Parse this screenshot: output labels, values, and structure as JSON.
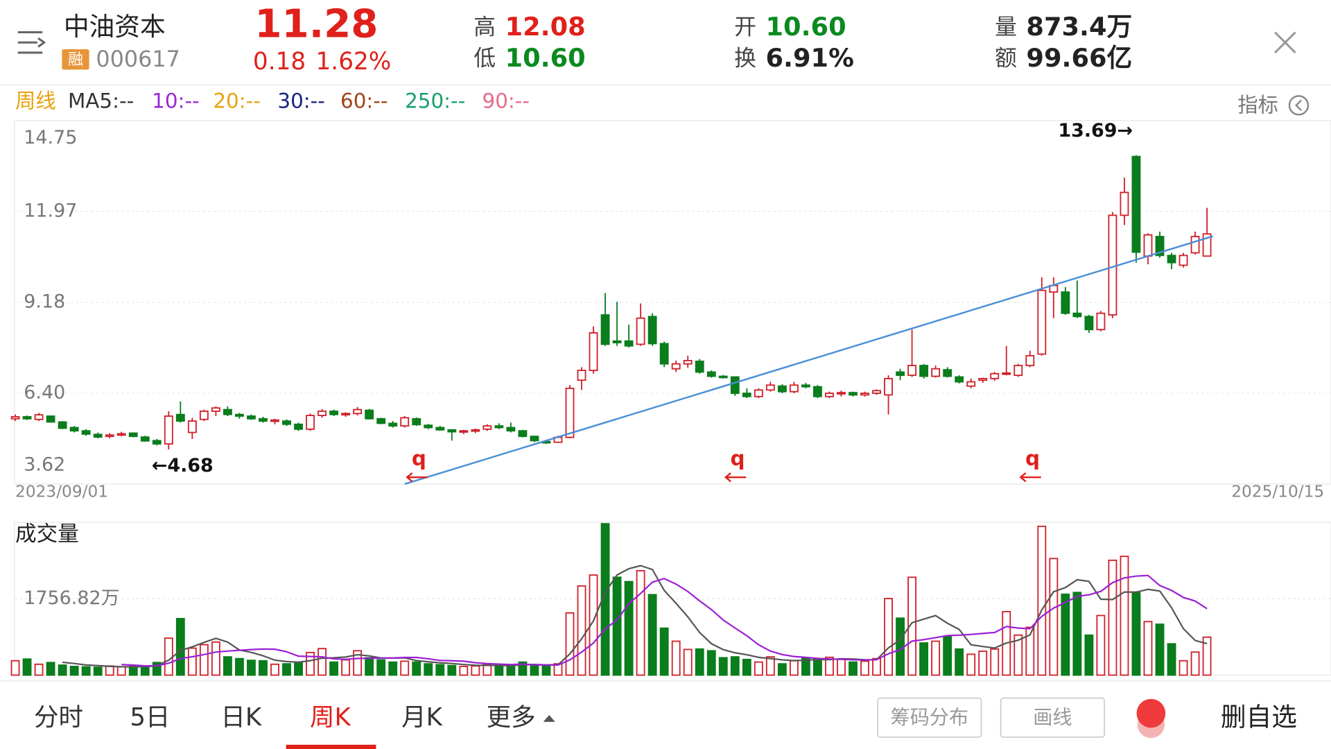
{
  "header": {
    "name": "中油资本",
    "tag": "融",
    "code": "000617",
    "price": "11.28",
    "change": "0.18",
    "change_pct": "1.62%",
    "stats": [
      {
        "label": "高",
        "value": "12.08",
        "color": "#e0201b"
      },
      {
        "label": "低",
        "value": "10.60",
        "color": "#0b8a1f"
      },
      {
        "label": "开",
        "value": "10.60",
        "color": "#0b8a1f"
      },
      {
        "label": "换",
        "value": "6.91%",
        "color": "#222222"
      },
      {
        "label": "量",
        "value": "873.4万",
        "color": "#222222"
      },
      {
        "label": "额",
        "value": "99.66亿",
        "color": "#222222"
      }
    ]
  },
  "indicator_bar": {
    "period": "周线",
    "button": "指标",
    "items": [
      {
        "label": "MA5:--",
        "color": "#333333"
      },
      {
        "label": "10:--",
        "color": "#9b27d6"
      },
      {
        "label": "20:--",
        "color": "#e8a30c"
      },
      {
        "label": "30:--",
        "color": "#1a237e"
      },
      {
        "label": "60:--",
        "color": "#a0441a"
      },
      {
        "label": "250:--",
        "color": "#17a06a"
      },
      {
        "label": "90:--",
        "color": "#e86a8a"
      }
    ]
  },
  "chart_data": {
    "type": "candlestick",
    "start_label": "2023/09/01",
    "end_label": "2025/10/15",
    "ylim": [
      3.62,
      14.75
    ],
    "yticks": [
      3.62,
      {
        "value": 6.4,
        "label": "6.40"
      },
      9.18,
      11.97,
      14.75
    ],
    "grid": true,
    "up_color": "#d0212a",
    "down_color": "#0a7d1d",
    "open": [
      5.62,
      5.68,
      5.6,
      5.7,
      5.52,
      5.35,
      5.25,
      5.14,
      5.08,
      5.12,
      5.18,
      5.06,
      4.95,
      4.85,
      5.75,
      5.2,
      5.6,
      5.85,
      5.9,
      5.75,
      5.7,
      5.62,
      5.55,
      5.55,
      5.45,
      5.3,
      5.72,
      5.85,
      5.75,
      5.78,
      5.88,
      5.62,
      5.48,
      5.4,
      5.62,
      5.42,
      5.35,
      5.28,
      5.22,
      5.25,
      5.3,
      5.4,
      5.35,
      5.25,
      5.08,
      4.92,
      4.9,
      5.05,
      6.8,
      7.1,
      8.8,
      8.0,
      8.0,
      7.9,
      8.75,
      7.92,
      7.15,
      7.3,
      7.38,
      7.05,
      6.92,
      6.9,
      6.4,
      6.3,
      6.5,
      6.62,
      6.45,
      6.65,
      6.6,
      6.3,
      6.4,
      6.42,
      6.35,
      6.4,
      6.35,
      7.05,
      6.95,
      7.25,
      6.92,
      7.12,
      6.9,
      6.62,
      6.8,
      6.85,
      7.0,
      6.95,
      7.25,
      7.6,
      9.5,
      9.5,
      8.85,
      8.75,
      8.35,
      8.8,
      11.85,
      13.65,
      10.6,
      11.2,
      10.62,
      10.32,
      10.7,
      10.6
    ],
    "high": [
      5.75,
      5.72,
      5.8,
      5.72,
      5.55,
      5.4,
      5.3,
      5.2,
      5.18,
      5.22,
      5.2,
      5.1,
      5.0,
      5.85,
      6.15,
      5.65,
      5.9,
      6.0,
      6.0,
      5.8,
      5.75,
      5.68,
      5.62,
      5.6,
      5.5,
      5.78,
      5.92,
      5.9,
      5.82,
      5.98,
      5.92,
      5.65,
      5.55,
      5.7,
      5.66,
      5.46,
      5.4,
      5.3,
      5.28,
      5.32,
      5.45,
      5.48,
      5.5,
      5.28,
      5.1,
      4.98,
      5.1,
      6.65,
      7.2,
      8.45,
      9.47,
      9.2,
      8.5,
      9.15,
      8.85,
      7.98,
      7.4,
      7.55,
      7.45,
      7.1,
      6.96,
      6.92,
      6.55,
      6.55,
      6.75,
      6.68,
      6.75,
      6.72,
      6.65,
      6.45,
      6.48,
      6.45,
      6.45,
      6.52,
      6.95,
      7.15,
      8.35,
      7.3,
      7.25,
      7.2,
      6.95,
      6.85,
      6.88,
      7.05,
      7.85,
      7.3,
      7.7,
      9.95,
      9.95,
      9.65,
      9.85,
      8.8,
      8.92,
      11.95,
      13.0,
      13.69,
      11.3,
      11.35,
      10.7,
      10.7,
      11.35,
      12.08
    ],
    "low": [
      5.55,
      5.58,
      5.55,
      5.5,
      5.3,
      5.2,
      5.1,
      5.02,
      5.02,
      5.08,
      5.05,
      4.92,
      4.8,
      4.68,
      5.5,
      5.0,
      5.55,
      5.7,
      5.7,
      5.62,
      5.58,
      5.5,
      5.45,
      5.4,
      5.25,
      5.25,
      5.65,
      5.7,
      5.68,
      5.72,
      5.6,
      5.45,
      5.35,
      5.35,
      5.4,
      5.3,
      5.25,
      4.95,
      5.15,
      5.18,
      5.25,
      5.3,
      5.2,
      5.05,
      4.9,
      4.85,
      4.88,
      5.02,
      6.5,
      7.0,
      7.85,
      7.85,
      7.8,
      7.85,
      7.85,
      7.2,
      7.05,
      7.18,
      7.0,
      6.88,
      6.85,
      6.32,
      6.25,
      6.25,
      6.45,
      6.4,
      6.4,
      6.55,
      6.25,
      6.25,
      6.3,
      6.3,
      6.3,
      6.35,
      5.75,
      6.8,
      6.9,
      6.85,
      6.88,
      6.88,
      6.7,
      6.55,
      6.72,
      6.78,
      6.95,
      6.9,
      7.2,
      7.55,
      8.7,
      8.8,
      8.7,
      8.25,
      8.3,
      8.7,
      11.55,
      10.4,
      10.35,
      10.55,
      10.2,
      10.25,
      10.65,
      10.6
    ],
    "close": [
      5.68,
      5.62,
      5.74,
      5.52,
      5.33,
      5.25,
      5.15,
      5.06,
      5.12,
      5.16,
      5.08,
      4.94,
      4.85,
      5.7,
      5.55,
      5.55,
      5.85,
      5.95,
      5.75,
      5.7,
      5.62,
      5.55,
      5.58,
      5.45,
      5.3,
      5.72,
      5.85,
      5.75,
      5.78,
      5.9,
      5.62,
      5.48,
      5.4,
      5.65,
      5.44,
      5.35,
      5.28,
      5.22,
      5.25,
      5.28,
      5.4,
      5.35,
      5.25,
      5.08,
      4.95,
      4.9,
      5.05,
      6.55,
      7.1,
      8.25,
      7.9,
      7.95,
      7.85,
      8.7,
      7.92,
      7.3,
      7.3,
      7.4,
      7.05,
      6.92,
      6.88,
      6.4,
      6.3,
      6.5,
      6.65,
      6.45,
      6.65,
      6.6,
      6.3,
      6.4,
      6.42,
      6.35,
      6.4,
      6.48,
      6.85,
      6.95,
      7.25,
      6.92,
      7.15,
      6.92,
      6.75,
      6.75,
      6.85,
      7.0,
      7.02,
      7.25,
      7.55,
      9.55,
      9.7,
      8.85,
      8.75,
      8.35,
      8.85,
      11.85,
      12.55,
      10.72,
      11.25,
      10.62,
      10.4,
      10.62,
      11.2,
      11.28
    ],
    "annotations": [
      {
        "label": "←4.68",
        "index": 13,
        "value": 4.68
      },
      {
        "label": "13.69→",
        "index": 95,
        "value": 13.69
      }
    ],
    "markers": [
      {
        "index": 34,
        "label": "q"
      },
      {
        "index": 61,
        "label": "q"
      },
      {
        "index": 86,
        "label": "q"
      }
    ],
    "trendline": {
      "x": [
        33,
        101.5
      ],
      "y": [
        3.62,
        11.21
      ],
      "color": "#4a8fd6"
    },
    "volume": {
      "title": "成交量",
      "ylim": [
        0,
        3513.64
      ],
      "yticks": [
        {
          "value": 1756.82,
          "label": "1756.82万"
        }
      ],
      "values": [
        330,
        370,
        250,
        290,
        230,
        200,
        190,
        180,
        210,
        190,
        200,
        190,
        290,
        850,
        1300,
        620,
        700,
        760,
        420,
        380,
        340,
        330,
        250,
        260,
        300,
        520,
        610,
        300,
        350,
        560,
        400,
        350,
        300,
        320,
        300,
        260,
        240,
        220,
        200,
        210,
        250,
        230,
        200,
        300,
        240,
        200,
        260,
        1430,
        2050,
        2300,
        3480,
        2250,
        2150,
        2400,
        1850,
        1080,
        780,
        590,
        600,
        560,
        400,
        420,
        360,
        300,
        420,
        260,
        330,
        400,
        380,
        410,
        360,
        300,
        320,
        380,
        1760,
        1310,
        2250,
        740,
        780,
        880,
        600,
        480,
        550,
        600,
        1460,
        920,
        1100,
        3420,
        2680,
        1860,
        1900,
        920,
        1370,
        2640,
        2730,
        1890,
        1230,
        1170,
        720,
        330,
        530,
        873.4
      ],
      "ma": [
        {
          "color": "#555555",
          "values": [
            null,
            null,
            null,
            null,
            294,
            268,
            232,
            218,
            202,
            194,
            194,
            194,
            216,
            344,
            566,
            650,
            752,
            846,
            760,
            576,
            524,
            446,
            344,
            312,
            296,
            332,
            388,
            398,
            416,
            468,
            444,
            392,
            392,
            396,
            334,
            306,
            284,
            268,
            244,
            226,
            224,
            222,
            218,
            238,
            244,
            234,
            240,
            486,
            836,
            1248,
            1904,
            2302,
            2446,
            2516,
            2426,
            1946,
            1652,
            1340,
            980,
            722,
            586,
            514,
            468,
            408,
            380,
            352,
            334,
            342,
            358,
            356,
            376,
            370,
            354,
            354,
            626,
            814,
            1204,
            1288,
            1368,
            1192,
            1050,
            696,
            658,
            622,
            738,
            802,
            926,
            1500,
            1916,
            2012,
            2192,
            2156,
            1746,
            1738,
            1912,
            1910,
            1972,
            1932,
            1548,
            1068,
            796,
            725
          ]
        },
        {
          "color": "#9b1fd6",
          "values": [
            null,
            null,
            null,
            null,
            null,
            null,
            null,
            null,
            null,
            244,
            231,
            213,
            217,
            273,
            380,
            422,
            473,
            531,
            552,
            571,
            587,
            600,
            595,
            536,
            436,
            428,
            419,
            373,
            364,
            382,
            388,
            390,
            395,
            406,
            406,
            375,
            338,
            330,
            320,
            285,
            265,
            253,
            243,
            253,
            237,
            231,
            233,
            349,
            529,
            738,
            1061,
            1268,
            1641,
            1877,
            2138,
            2220,
            2093,
            1922,
            1706,
            1507,
            1266,
            1083,
            906,
            696,
            553,
            472,
            427,
            407,
            385,
            370,
            366,
            352,
            348,
            356,
            491,
            589,
            781,
            815,
            861,
            908,
            919,
            935,
            958,
            980,
            1116,
            1082,
            1067,
            1350,
            1540,
            1670,
            1810,
            1847,
            1924,
            2126,
            2236,
            2276,
            2289,
            2060,
            1946,
            1787,
            1703,
            1526
          ]
        }
      ]
    }
  },
  "tabs": {
    "items": [
      "分时",
      "5日",
      "日K",
      "周K",
      "月K",
      "更多"
    ],
    "active": 3,
    "active_color": "#e0201b"
  },
  "buttons": [
    "筹码分布",
    "画线"
  ],
  "action": "删自选"
}
